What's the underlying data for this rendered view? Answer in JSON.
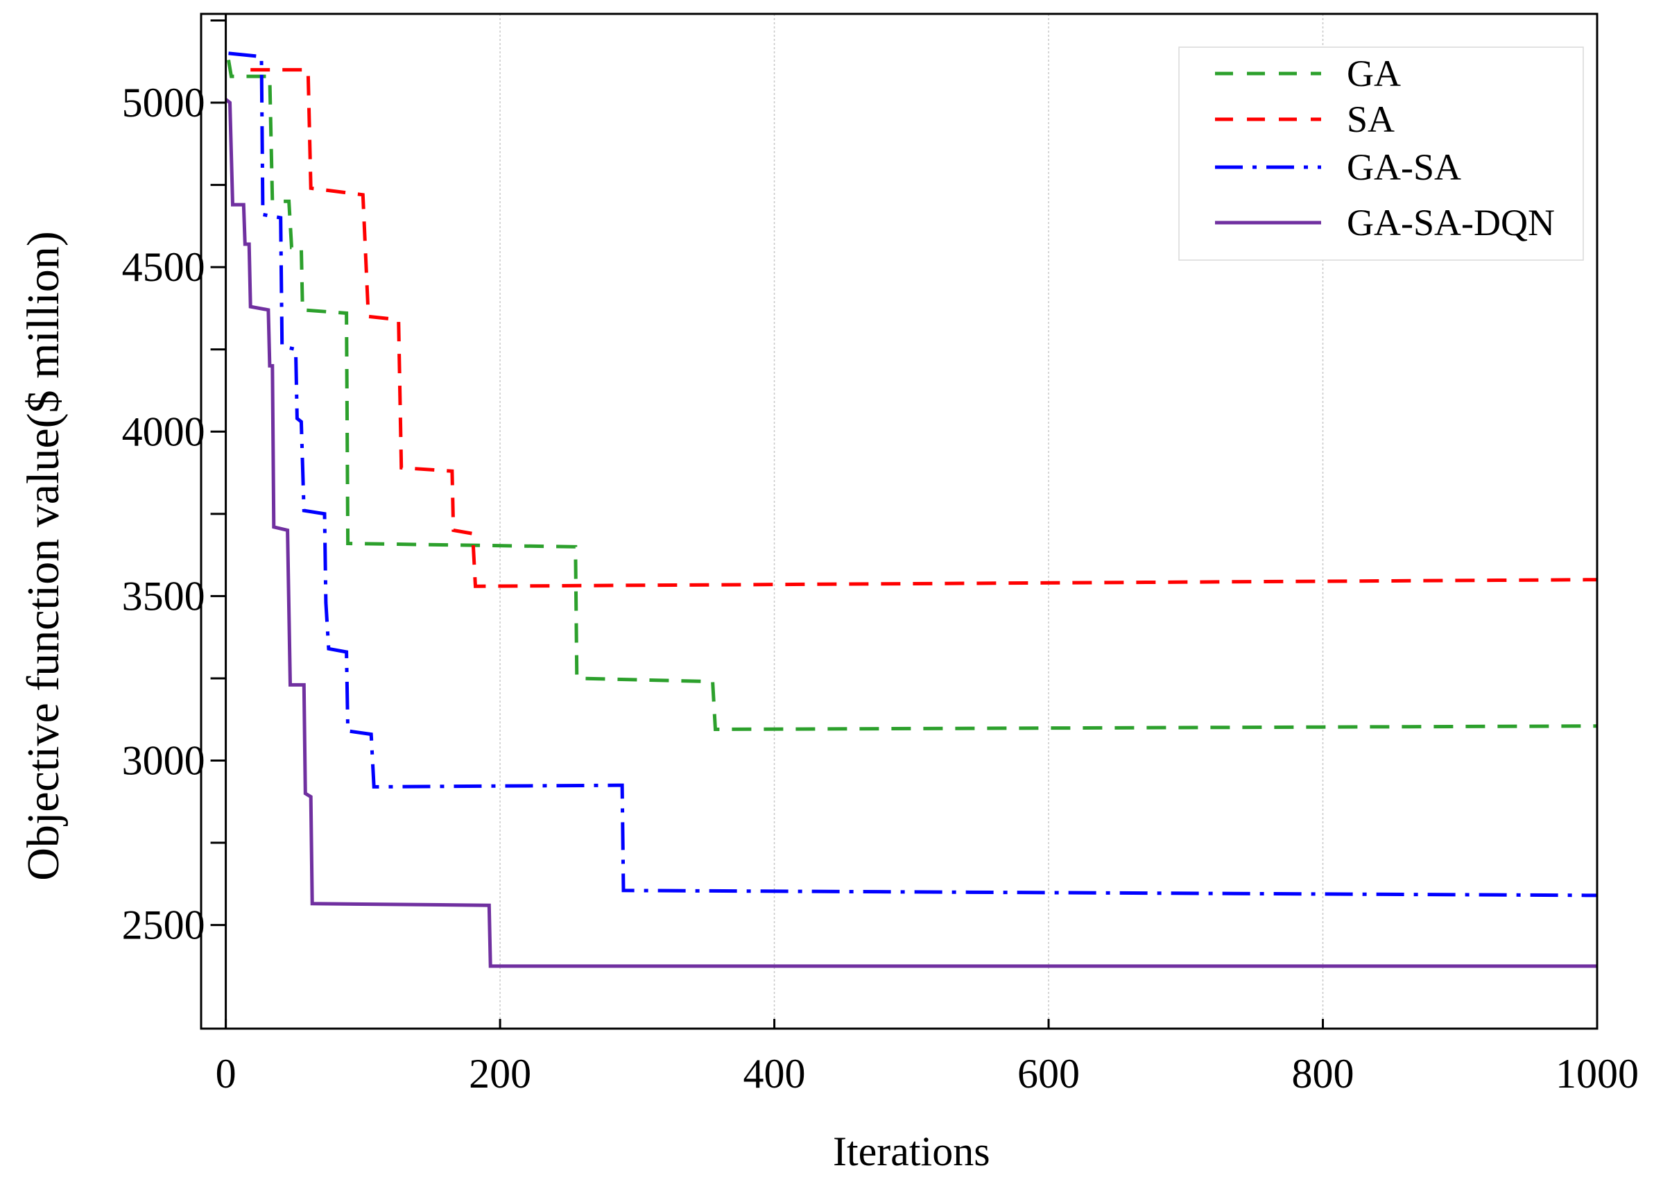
{
  "chart_data": {
    "type": "line",
    "title": "",
    "xlabel": "Iterations",
    "ylabel": "Objective function value($ million)",
    "xlim": [
      -18,
      1000
    ],
    "ylim": [
      2185,
      5270
    ],
    "x_ticks": [
      0,
      200,
      400,
      600,
      800,
      1000
    ],
    "y_ticks": [
      2500,
      3000,
      3500,
      4000,
      4500,
      5000
    ],
    "y_minor_ticks": [
      2750,
      3250,
      3750,
      4250,
      4750,
      5250
    ],
    "grid": {
      "vertical": true,
      "horizontal": false
    },
    "legend_position": "top-right",
    "series": [
      {
        "name": "GA",
        "style": "dashed",
        "color": "#2ca02c",
        "points": [
          [
            2,
            5130
          ],
          [
            4,
            5080
          ],
          [
            32,
            5080
          ],
          [
            34,
            4700
          ],
          [
            46,
            4700
          ],
          [
            48,
            4560
          ],
          [
            55,
            4560
          ],
          [
            56,
            4370
          ],
          [
            88,
            4360
          ],
          [
            89,
            3660
          ],
          [
            255,
            3650
          ],
          [
            256,
            3250
          ],
          [
            355,
            3240
          ],
          [
            357,
            3095
          ],
          [
            1000,
            3105
          ]
        ]
      },
      {
        "name": "SA",
        "style": "dashed",
        "color": "#ff0000",
        "points": [
          [
            18,
            5100
          ],
          [
            60,
            5100
          ],
          [
            62,
            4740
          ],
          [
            100,
            4720
          ],
          [
            104,
            4350
          ],
          [
            126,
            4340
          ],
          [
            128,
            3890
          ],
          [
            165,
            3880
          ],
          [
            166,
            3700
          ],
          [
            180,
            3690
          ],
          [
            182,
            3530
          ],
          [
            1000,
            3550
          ]
        ]
      },
      {
        "name": "GA-SA",
        "style": "dash-dot",
        "color": "#0000ff",
        "points": [
          [
            2,
            5150
          ],
          [
            26,
            5140
          ],
          [
            27,
            4660
          ],
          [
            40,
            4650
          ],
          [
            41,
            4260
          ],
          [
            51,
            4250
          ],
          [
            52,
            4040
          ],
          [
            55,
            4030
          ],
          [
            57,
            3760
          ],
          [
            72,
            3750
          ],
          [
            73,
            3480
          ],
          [
            75,
            3340
          ],
          [
            88,
            3330
          ],
          [
            89,
            3090
          ],
          [
            106,
            3080
          ],
          [
            108,
            2920
          ],
          [
            289,
            2925
          ],
          [
            290,
            2605
          ],
          [
            1000,
            2590
          ]
        ]
      },
      {
        "name": "GA-SA-DQN",
        "style": "solid",
        "color": "#7030a0",
        "points": [
          [
            0,
            5010
          ],
          [
            3,
            5000
          ],
          [
            5,
            4690
          ],
          [
            13,
            4690
          ],
          [
            14,
            4570
          ],
          [
            17,
            4570
          ],
          [
            18,
            4380
          ],
          [
            31,
            4370
          ],
          [
            32,
            4200
          ],
          [
            34,
            4200
          ],
          [
            35,
            3710
          ],
          [
            45,
            3700
          ],
          [
            47,
            3230
          ],
          [
            57,
            3230
          ],
          [
            58,
            2900
          ],
          [
            62,
            2890
          ],
          [
            63,
            2565
          ],
          [
            192,
            2560
          ],
          [
            193,
            2375
          ],
          [
            1000,
            2375
          ]
        ]
      }
    ]
  }
}
